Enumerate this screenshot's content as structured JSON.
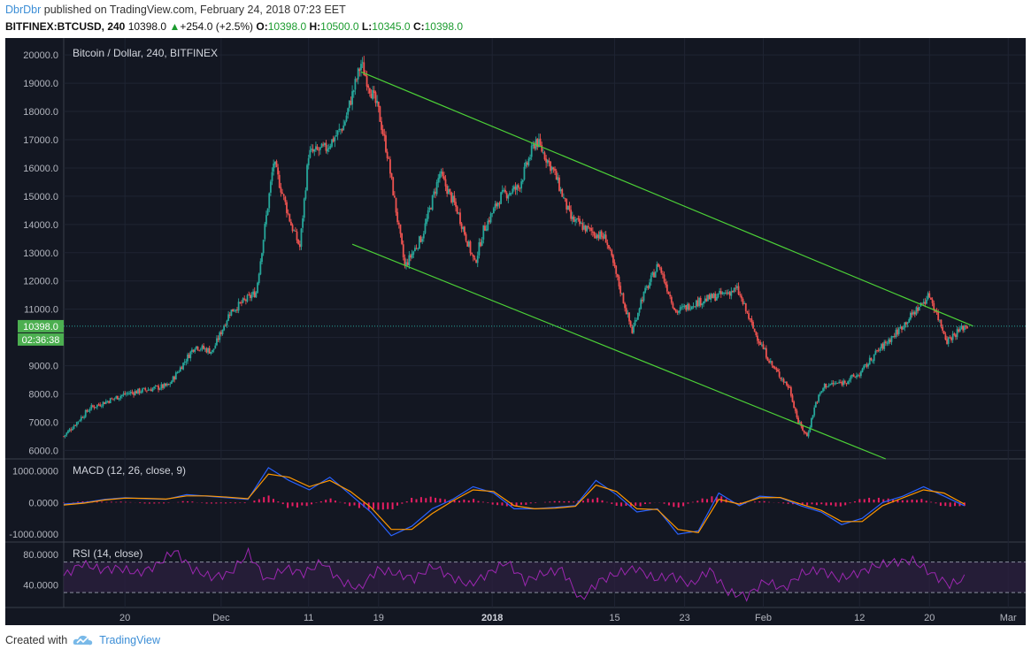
{
  "header": {
    "author": "DbrDbr",
    "published_text": " published on TradingView.com, February 24, 2018 07:23 EET",
    "symbol": "BITFINEX:BTCUSD, 240",
    "last": "10398.0",
    "change": "+254.0 (+2.5%)",
    "o_label": "O:",
    "o_val": "10398.0",
    "h_label": "H:",
    "h_val": "10500.0",
    "l_label": "L:",
    "l_val": "10345.0",
    "c_label": "C:",
    "c_val": "10398.0"
  },
  "footer": {
    "created_with": "Created with",
    "brand": "TradingView"
  },
  "colors": {
    "background": "#131722",
    "up": "#26a69a",
    "down": "#ef5350",
    "trendline": "#4cd137",
    "macd": "#2962ff",
    "signal": "#ff9800",
    "histogram": "#e91e63",
    "rsi": "#9c27b0",
    "price_tag": "#4caf50"
  },
  "chart_data": [
    {
      "type": "candlestick",
      "title": "Bitcoin / Dollar, 240, BITFINEX",
      "interval": "240",
      "ylim": [
        5700,
        20600
      ],
      "y_ticks": [
        "6000.0",
        "7000.0",
        "8000.0",
        "9000.0",
        "10000.0",
        "11000.0",
        "12000.0",
        "13000.0",
        "14000.0",
        "15000.0",
        "16000.0",
        "17000.0",
        "18000.0",
        "19000.0",
        "20000.0"
      ],
      "x_ticks": [
        "20",
        "Dec",
        "11",
        "19",
        "2018",
        "15",
        "23",
        "Feb",
        "12",
        "20",
        "Mar"
      ],
      "x_range": [
        "2017-11-13",
        "2018-03-03"
      ],
      "last_price": "10398.0",
      "countdown": "02:36:38",
      "close_path": [
        {
          "x": "2017-11-13",
          "close": 6500
        },
        {
          "x": "2017-11-16",
          "close": 7500
        },
        {
          "x": "2017-11-20",
          "close": 8000
        },
        {
          "x": "2017-11-25",
          "close": 8300
        },
        {
          "x": "2017-11-28",
          "close": 9700
        },
        {
          "x": "2017-11-30",
          "close": 9500
        },
        {
          "x": "2017-12-02",
          "close": 10900
        },
        {
          "x": "2017-12-05",
          "close": 11600
        },
        {
          "x": "2017-12-07",
          "close": 16200
        },
        {
          "x": "2017-12-09",
          "close": 14000
        },
        {
          "x": "2017-12-10",
          "close": 13200
        },
        {
          "x": "2017-12-11",
          "close": 16500
        },
        {
          "x": "2017-12-13",
          "close": 16700
        },
        {
          "x": "2017-12-15",
          "close": 17500
        },
        {
          "x": "2017-12-17",
          "close": 19700
        },
        {
          "x": "2017-12-19",
          "close": 18000
        },
        {
          "x": "2017-12-20",
          "close": 16500
        },
        {
          "x": "2017-12-22",
          "close": 12500
        },
        {
          "x": "2017-12-24",
          "close": 13600
        },
        {
          "x": "2017-12-26",
          "close": 15800
        },
        {
          "x": "2017-12-28",
          "close": 14500
        },
        {
          "x": "2017-12-30",
          "close": 12600
        },
        {
          "x": "2017-12-31",
          "close": 13800
        },
        {
          "x": "2018-01-02",
          "close": 15000
        },
        {
          "x": "2018-01-04",
          "close": 15300
        },
        {
          "x": "2018-01-06",
          "close": 17000
        },
        {
          "x": "2018-01-08",
          "close": 15900
        },
        {
          "x": "2018-01-10",
          "close": 14200
        },
        {
          "x": "2018-01-12",
          "close": 13800
        },
        {
          "x": "2018-01-14",
          "close": 13500
        },
        {
          "x": "2018-01-16",
          "close": 11300
        },
        {
          "x": "2018-01-17",
          "close": 10200
        },
        {
          "x": "2018-01-18",
          "close": 11300
        },
        {
          "x": "2018-01-20",
          "close": 12600
        },
        {
          "x": "2018-01-22",
          "close": 10900
        },
        {
          "x": "2018-01-24",
          "close": 11200
        },
        {
          "x": "2018-01-27",
          "close": 11500
        },
        {
          "x": "2018-01-29",
          "close": 11700
        },
        {
          "x": "2018-01-31",
          "close": 10200
        },
        {
          "x": "2018-02-02",
          "close": 9000
        },
        {
          "x": "2018-02-04",
          "close": 8200
        },
        {
          "x": "2018-02-05",
          "close": 7000
        },
        {
          "x": "2018-02-06",
          "close": 6500
        },
        {
          "x": "2018-02-07",
          "close": 7700
        },
        {
          "x": "2018-02-08",
          "close": 8300
        },
        {
          "x": "2018-02-10",
          "close": 8400
        },
        {
          "x": "2018-02-12",
          "close": 8700
        },
        {
          "x": "2018-02-14",
          "close": 9500
        },
        {
          "x": "2018-02-16",
          "close": 10100
        },
        {
          "x": "2018-02-18",
          "close": 10800
        },
        {
          "x": "2018-02-20",
          "close": 11500
        },
        {
          "x": "2018-02-21",
          "close": 10700
        },
        {
          "x": "2018-02-22",
          "close": 9900
        },
        {
          "x": "2018-02-24",
          "close": 10398
        }
      ],
      "trendlines": [
        {
          "name": "channel-upper",
          "from": {
            "x": "2017-12-17",
            "y": 19400
          },
          "to": {
            "x": "2018-02-25",
            "y": 10400
          }
        },
        {
          "name": "channel-lower",
          "from": {
            "x": "2017-12-16",
            "y": 13300
          },
          "to": {
            "x": "2018-02-15",
            "y": 5700
          }
        }
      ]
    },
    {
      "type": "line",
      "title": "MACD (12, 26, close, 9)",
      "ylim": [
        -1250,
        1350
      ],
      "y_ticks": [
        "1000.0000",
        "0.0000",
        "-1000.0000"
      ],
      "series": [
        {
          "values": [
            -50,
            0,
            100,
            150,
            120,
            100,
            250,
            200,
            150,
            100,
            1100,
            700,
            400,
            800,
            250,
            -300,
            -1050,
            -750,
            -200,
            100,
            500,
            300,
            -200,
            -200,
            -150,
            -100,
            700,
            250,
            -300,
            -200,
            -1000,
            -900,
            300,
            -100,
            200,
            150,
            -100,
            -300,
            -700,
            -500,
            0,
            200,
            500,
            200,
            -100
          ]
        },
        {
          "values": [
            -80,
            -20,
            80,
            140,
            130,
            110,
            210,
            210,
            170,
            120,
            900,
            800,
            500,
            700,
            350,
            -150,
            -850,
            -850,
            -350,
            50,
            400,
            350,
            -100,
            -200,
            -180,
            -120,
            550,
            350,
            -200,
            -220,
            -850,
            -950,
            100,
            -50,
            150,
            160,
            -50,
            -250,
            -600,
            -600,
            -100,
            150,
            400,
            300,
            -50
          ]
        }
      ],
      "histogram_amplitude": [
        -20,
        50,
        20,
        30,
        -40,
        -30,
        60,
        -40,
        -30,
        -20,
        250,
        -200,
        -100,
        150,
        -120,
        -250,
        -250,
        150,
        200,
        60,
        120,
        -80,
        -150,
        -20,
        50,
        40,
        180,
        -120,
        -150,
        30,
        -200,
        100,
        250,
        -80,
        60,
        -20,
        -90,
        -80,
        -150,
        150,
        150,
        80,
        120,
        -150,
        -120
      ]
    },
    {
      "type": "line",
      "title": "RSI (14, close)",
      "ylim": [
        15,
        95
      ],
      "y_ticks": [
        "80.0000",
        "40.0000"
      ],
      "band": [
        30,
        70
      ],
      "values": [
        52,
        68,
        60,
        62,
        55,
        65,
        85,
        60,
        50,
        55,
        82,
        45,
        62,
        55,
        70,
        45,
        35,
        60,
        55,
        48,
        65,
        50,
        40,
        55,
        70,
        45,
        55,
        60,
        20,
        45,
        55,
        62,
        48,
        52,
        40,
        60,
        30,
        25,
        45,
        35,
        55,
        60,
        48,
        55,
        65,
        70,
        72,
        55,
        40,
        50
      ]
    }
  ]
}
